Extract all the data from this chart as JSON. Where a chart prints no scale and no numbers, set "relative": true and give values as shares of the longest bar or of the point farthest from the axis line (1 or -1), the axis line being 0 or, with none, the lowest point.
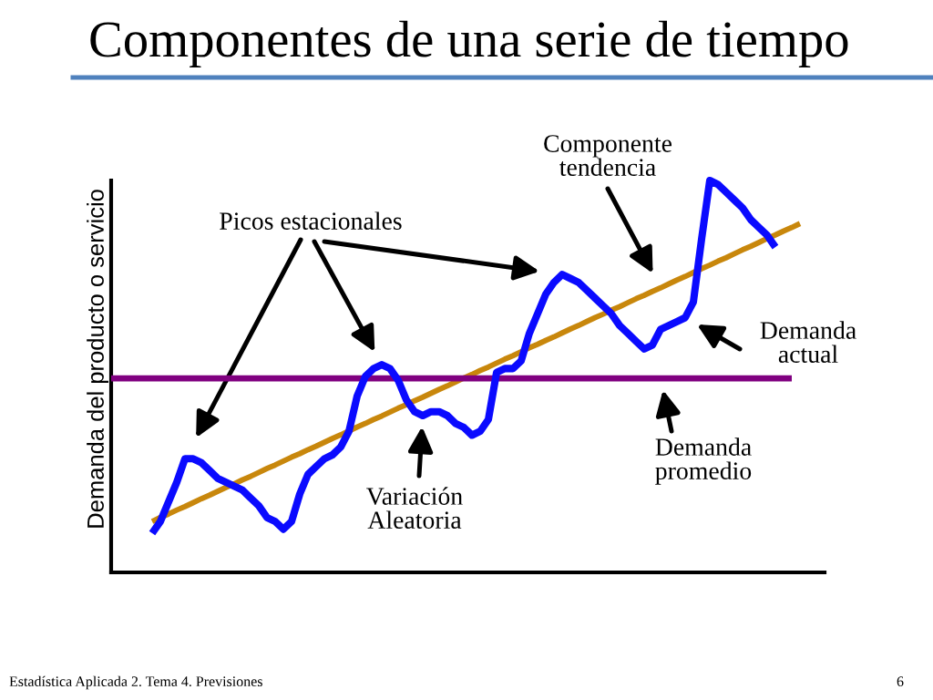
{
  "chart_data": {
    "type": "line",
    "title": "Componentes de una serie de tiempo",
    "ylabel": "Demanda del producto o servicio",
    "relative": true,
    "categories": [
      null,
      null,
      null,
      null,
      null,
      null,
      null,
      null,
      null,
      null,
      null,
      null,
      null,
      null,
      null,
      null,
      null,
      null,
      null,
      null,
      null,
      null,
      null,
      null,
      null,
      null,
      null,
      null,
      null,
      null,
      null,
      null,
      null,
      null,
      null,
      null,
      null,
      null,
      null,
      null,
      null,
      null,
      null,
      null,
      null,
      null,
      null,
      null,
      null,
      null,
      null,
      null,
      null,
      null,
      null,
      null,
      null,
      null,
      null,
      null,
      null,
      null,
      null,
      null,
      null,
      null,
      null,
      null,
      null,
      null,
      null,
      null,
      null,
      null,
      null,
      null,
      null,
      null,
      null,
      null,
      null,
      null,
      null,
      null,
      null,
      null,
      null,
      null
    ],
    "series": [
      {
        "color": "#c8870c",
        "values": [
          null,
          null,
          null,
          null,
          null,
          0.13,
          0.14,
          0.149,
          0.159,
          0.168,
          0.178,
          0.188,
          0.197,
          0.207,
          0.217,
          0.226,
          0.236,
          0.245,
          0.255,
          0.265,
          0.274,
          0.284,
          0.294,
          0.303,
          0.313,
          0.322,
          0.332,
          0.342,
          0.351,
          0.361,
          0.371,
          0.38,
          0.39,
          0.399,
          0.409,
          0.419,
          0.428,
          0.438,
          0.447,
          0.457,
          0.467,
          0.476,
          0.486,
          0.496,
          0.505,
          0.515,
          0.524,
          0.534,
          0.544,
          0.553,
          0.563,
          0.573,
          0.582,
          0.592,
          0.601,
          0.611,
          0.621,
          0.63,
          0.64,
          0.65,
          0.659,
          0.669,
          0.678,
          0.688,
          0.698,
          0.707,
          0.717,
          0.726,
          0.736,
          0.746,
          0.755,
          0.765,
          0.775,
          0.784,
          0.794,
          0.803,
          0.813,
          0.823,
          0.832,
          0.842,
          0.852,
          0.861,
          0.871,
          0.88,
          0.89,
          null,
          null,
          null
        ]
      },
      {
        "color": "#800080",
        "values": [
          0.495,
          0.495,
          0.495,
          0.495,
          0.495,
          0.495,
          0.495,
          0.495,
          0.495,
          0.495,
          0.495,
          0.495,
          0.495,
          0.495,
          0.495,
          0.495,
          0.495,
          0.495,
          0.495,
          0.495,
          0.495,
          0.495,
          0.495,
          0.495,
          0.495,
          0.495,
          0.495,
          0.495,
          0.495,
          0.495,
          0.495,
          0.495,
          0.495,
          0.495,
          0.495,
          0.495,
          0.495,
          0.495,
          0.495,
          0.495,
          0.495,
          0.495,
          0.495,
          0.495,
          0.495,
          0.495,
          0.495,
          0.495,
          0.495,
          0.495,
          0.495,
          0.495,
          0.495,
          0.495,
          0.495,
          0.495,
          0.495,
          0.495,
          0.495,
          0.495,
          0.495,
          0.495,
          0.495,
          0.495,
          0.495,
          0.495,
          0.495,
          0.495,
          0.495,
          0.495,
          0.495,
          0.495,
          0.495,
          0.495,
          0.495,
          0.495,
          0.495,
          0.495,
          0.495,
          0.495,
          0.495,
          0.495,
          0.495,
          0.495,
          null,
          null,
          null,
          null
        ]
      },
      {
        "color": "#0a0aff",
        "values": [
          null,
          null,
          null,
          null,
          null,
          0.1,
          0.13,
          0.18,
          0.23,
          0.29,
          0.29,
          0.28,
          0.26,
          0.24,
          0.23,
          0.22,
          0.21,
          0.19,
          0.17,
          0.14,
          0.13,
          0.11,
          0.13,
          0.2,
          0.25,
          0.27,
          0.29,
          0.3,
          0.32,
          0.36,
          0.45,
          0.5,
          0.52,
          0.53,
          0.52,
          0.49,
          0.44,
          0.41,
          0.4,
          0.41,
          0.41,
          0.4,
          0.38,
          0.37,
          0.35,
          0.36,
          0.39,
          0.51,
          0.52,
          0.52,
          0.54,
          0.61,
          0.66,
          0.71,
          0.74,
          0.76,
          0.75,
          0.74,
          0.72,
          0.7,
          0.68,
          0.66,
          0.63,
          0.61,
          0.59,
          0.57,
          0.58,
          0.62,
          0.63,
          0.64,
          0.65,
          0.69,
          0.85,
          1,
          0.99,
          0.97,
          0.95,
          0.93,
          0.9,
          0.88,
          0.86,
          0.83,
          null,
          null,
          null,
          null,
          null,
          null
        ]
      }
    ],
    "annotations": [
      "Componente\ntendencia",
      "Picos estacionales",
      "Demanda\nactual",
      "Demanda\npromedio",
      "Variación\nAleatoria",
      "Estadística Aplicada 2. Tema 4. Previsiones",
      "6"
    ]
  }
}
